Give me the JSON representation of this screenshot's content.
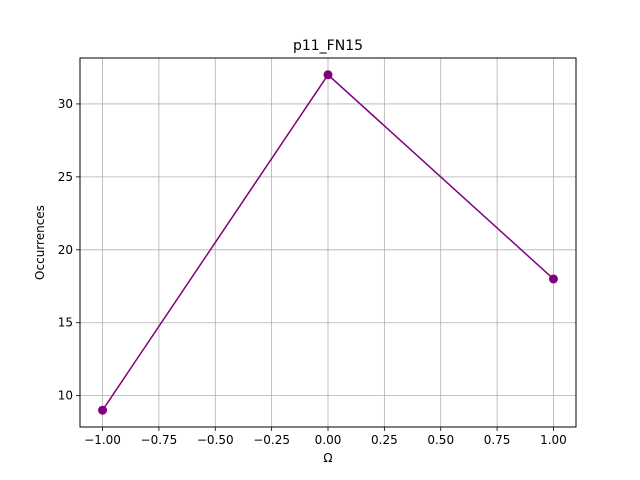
{
  "chart_data": {
    "type": "line",
    "title": "p11_FN15",
    "xlabel": "Ω",
    "ylabel": "Occurrences",
    "x": [
      -1.0,
      0.0,
      1.0
    ],
    "series": [
      {
        "values": [
          9,
          32,
          18
        ],
        "color": "#800080",
        "marker": "circle"
      }
    ],
    "xlim": [
      -1.1,
      1.1
    ],
    "ylim": [
      7.85,
      33.15
    ],
    "xticks": [
      -1.0,
      -0.75,
      -0.5,
      -0.25,
      0.0,
      0.25,
      0.5,
      0.75,
      1.0
    ],
    "xtick_labels": [
      "−1.00",
      "−0.75",
      "−0.50",
      "−0.25",
      "0.00",
      "0.25",
      "0.50",
      "0.75",
      "1.00"
    ],
    "yticks": [
      10,
      15,
      20,
      25,
      30
    ],
    "ytick_labels": [
      "10",
      "15",
      "20",
      "25",
      "30"
    ],
    "grid": true,
    "grid_color": "#b0b0b0",
    "axis_color": "#000000"
  }
}
